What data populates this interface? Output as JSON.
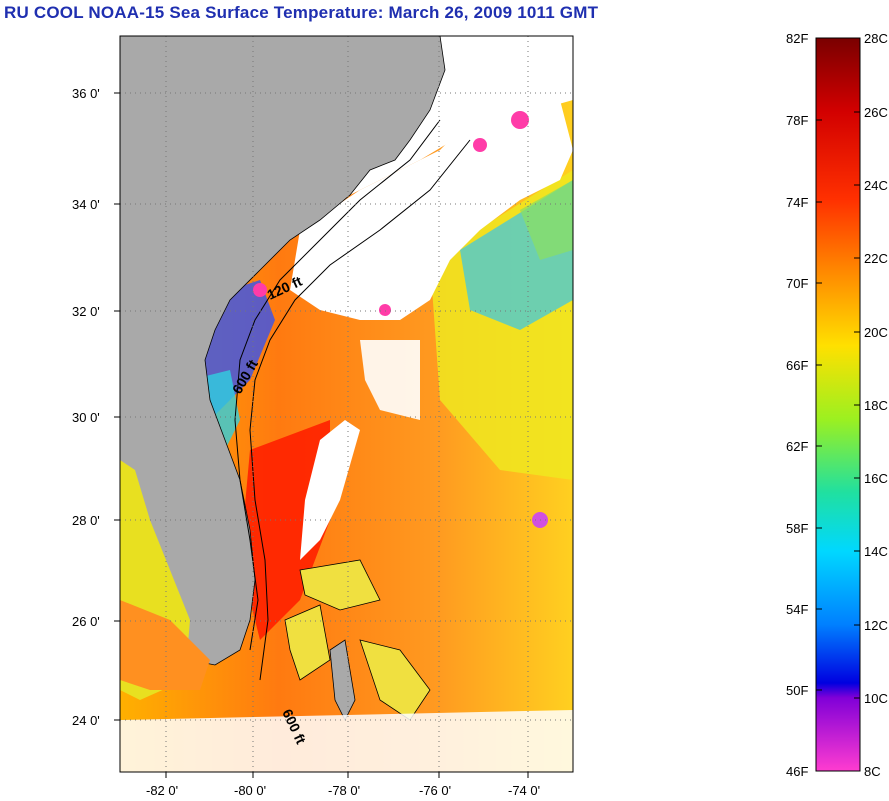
{
  "title": "RU COOL  NOAA-15  Sea Surface Temperature:  March 26, 2009 1011 GMT",
  "map": {
    "lat_labels": [
      "36 0'",
      "34 0'",
      "32 0'",
      "30 0'",
      "28 0'",
      "26 0'",
      "24 0'"
    ],
    "lon_labels": [
      "-82 0'",
      "-80 0'",
      "-78 0'",
      "-76 0'",
      "-74 0'"
    ],
    "contour_labels": [
      "120 ft",
      "600 ft",
      "600 ft"
    ],
    "colors": {
      "land": "#a9a9a9",
      "cloud": "#ffffff",
      "warm": "#ff2a00",
      "orange": "#ff8c00",
      "yellow": "#ffe000",
      "cyan": "#1ec8d8",
      "blue": "#1e3cff",
      "magenta": "#ff3ca8"
    }
  },
  "colorbar": {
    "fahrenheit_labels": [
      "82F",
      "78F",
      "74F",
      "70F",
      "66F",
      "62F",
      "58F",
      "54F",
      "50F",
      "46F"
    ],
    "celsius_labels": [
      "28C",
      "26C",
      "24C",
      "22C",
      "20C",
      "18C",
      "16C",
      "14C",
      "12C",
      "10C",
      "8C"
    ]
  }
}
